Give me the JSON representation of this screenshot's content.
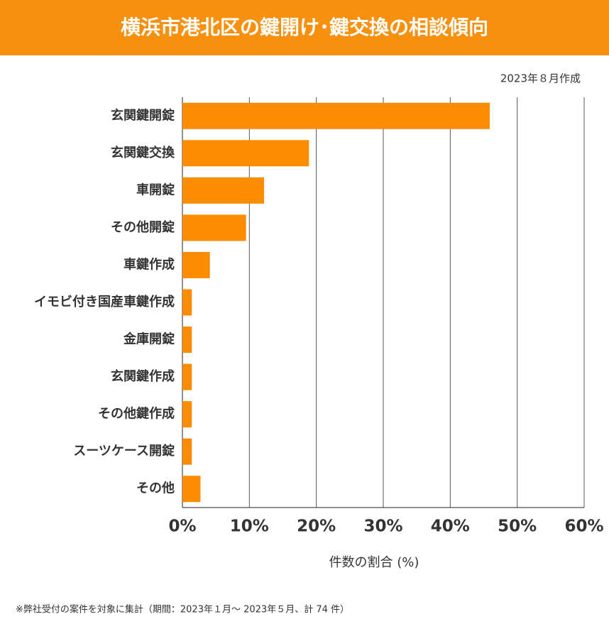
{
  "chart_data": {
    "type": "barh",
    "title": "横浜市港北区の鍵開け･鍵交換の相談傾向",
    "subtitle": "2023年８月作成",
    "x_label": "件数の割合 (%)",
    "note": "※弊社受付の案件を対象に集計（期間：2023年１月～ 2023年５月、計 74 件）",
    "categories": [
      "玄関鍵開錠",
      "玄関鍵交換",
      "車開錠",
      "その他開錠",
      "車鍵作成",
      "イモビ付き国産車鍵作成",
      "金庫開錠",
      "玄関鍵作成",
      "その他鍵作成",
      "スーツケース開錠",
      "その他"
    ],
    "values": [
      45.9,
      18.9,
      12.2,
      9.5,
      4.1,
      1.4,
      1.4,
      1.4,
      1.4,
      1.4,
      2.7
    ],
    "color": "#fb8c00",
    "header_color": "#f7900f",
    "xlim": [
      0,
      60
    ],
    "xticks": [
      {
        "value": 0,
        "label": "0%"
      },
      {
        "value": 10,
        "label": "10%"
      },
      {
        "value": 20,
        "label": "20%"
      },
      {
        "value": 30,
        "label": "30%"
      },
      {
        "value": 40,
        "label": "40%"
      },
      {
        "value": 50,
        "label": "50%"
      },
      {
        "value": 60,
        "label": "60%"
      }
    ],
    "grid": true
  }
}
